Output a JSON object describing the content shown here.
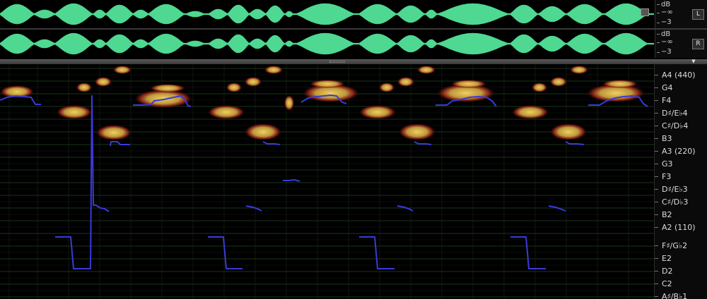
{
  "meters": {
    "left": {
      "unit": "dB",
      "level": "−∞",
      "scale_mark": "−3",
      "channel_button": "L"
    },
    "right": {
      "unit": "dB",
      "level": "−∞",
      "scale_mark": "−3",
      "channel_button": "R"
    }
  },
  "note_axis": {
    "labels": [
      "A4 (440)",
      "G4",
      "F4",
      "D♯/E♭4",
      "C♯/D♭4",
      "B3",
      "A3 (220)",
      "G3",
      "F3",
      "D♯/E♭3",
      "C♯/D♭3",
      "B2",
      "A2 (110)",
      "F♯/G♭2",
      "E2",
      "D2",
      "C2",
      "A♯/B♭1"
    ]
  },
  "colors": {
    "waveform": "#4ed891",
    "pitch_curve": "#3a3ad8",
    "spectrum_hot": "#e8c24a",
    "grid": "#1d3a1d"
  }
}
